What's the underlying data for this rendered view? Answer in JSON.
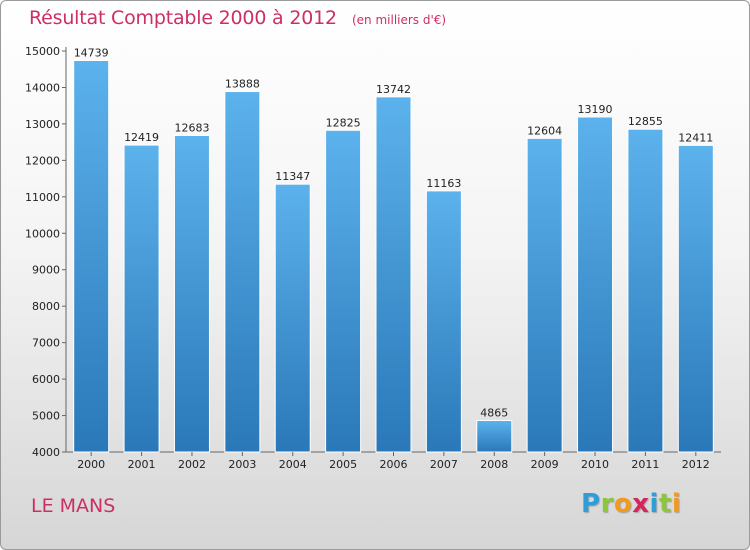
{
  "header": {
    "title": "Résultat Comptable 2000 à 2012",
    "subtitle": "(en milliers d'€)"
  },
  "footer": {
    "town": "LE MANS",
    "logo": {
      "letters": [
        {
          "char": "P",
          "color": "#2f9ed8"
        },
        {
          "char": "r",
          "color": "#8cc63f"
        },
        {
          "char": "o",
          "color": "#f39a1e"
        },
        {
          "char": "x",
          "color": "#d6245c"
        },
        {
          "char": "i",
          "color": "#2f9ed8"
        },
        {
          "char": "t",
          "color": "#8cc63f"
        },
        {
          "char": "i",
          "color": "#f39a1e"
        }
      ]
    }
  },
  "colors": {
    "title": "#cc2f63",
    "bar_top": "#5cb2ec",
    "bar_bottom": "#2a78b8"
  },
  "chart_data": {
    "type": "bar",
    "title": "Résultat Comptable 2000 à 2012",
    "subtitle": "(en milliers d'€)",
    "categories": [
      "2000",
      "2001",
      "2002",
      "2003",
      "2004",
      "2005",
      "2006",
      "2007",
      "2008",
      "2009",
      "2010",
      "2011",
      "2012"
    ],
    "values": [
      14739,
      12419,
      12683,
      13888,
      11347,
      12825,
      13742,
      11163,
      4865,
      12604,
      13190,
      12855,
      12411
    ],
    "ylim": [
      4000,
      15000
    ],
    "yticks": [
      4000,
      5000,
      6000,
      7000,
      8000,
      9000,
      10000,
      11000,
      12000,
      13000,
      14000,
      15000
    ],
    "grid": false,
    "data_labels": true
  }
}
